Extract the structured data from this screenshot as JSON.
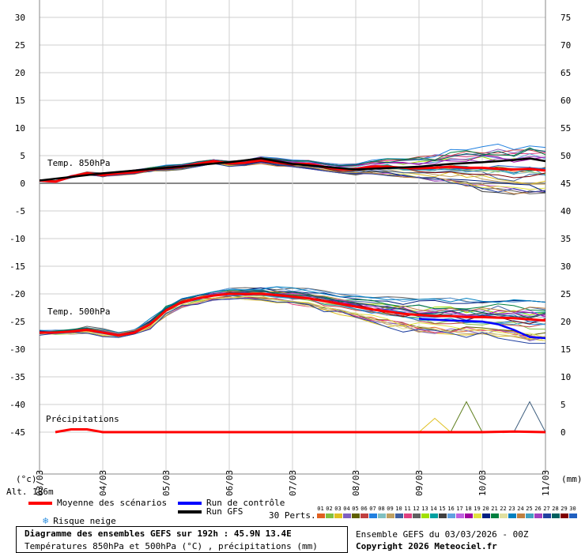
{
  "chart_data": {
    "type": "line",
    "x_categories": [
      "03/03",
      "04/03",
      "05/03",
      "06/03",
      "07/03",
      "08/03",
      "09/03",
      "10/03",
      "11/03"
    ],
    "y_left_ticks": [
      30,
      25,
      20,
      15,
      10,
      5,
      0,
      -5,
      -10,
      -15,
      -20,
      -25,
      -30,
      -35,
      -40,
      -45
    ],
    "y_right_ticks": [
      75,
      70,
      65,
      60,
      55,
      50,
      45,
      40,
      35,
      30,
      25,
      20,
      15,
      10,
      5,
      0
    ],
    "ylim_left": [
      -45,
      30
    ],
    "ylim_right": [
      0,
      75
    ],
    "left_unit": "(°c)",
    "right_unit": "(mm)",
    "annotations": {
      "t850": "Temp. 850hPa",
      "t500": "Temp. 500hPa",
      "precip": "Précipitations"
    },
    "series": [
      {
        "name": "Moyenne des scénarios",
        "group": "t850",
        "color": "#ff0000",
        "x": [
          0,
          0.25,
          0.5,
          0.75,
          1,
          1.25,
          1.5,
          1.75,
          2,
          2.25,
          2.5,
          2.75,
          3,
          3.25,
          3.5,
          3.75,
          4,
          4.25,
          4.5,
          4.75,
          5,
          5.25,
          5.5,
          5.75,
          6,
          6.25,
          6.5,
          6.75,
          7,
          7.25,
          7.5,
          7.75,
          8
        ],
        "values": [
          0.5,
          0.3,
          1.2,
          1.8,
          1.5,
          1.8,
          2.0,
          2.5,
          2.8,
          3.0,
          3.5,
          4.0,
          3.6,
          3.7,
          4.2,
          3.8,
          3.5,
          3.5,
          3.0,
          2.5,
          2.6,
          3.0,
          3.0,
          2.8,
          2.7,
          2.8,
          3.0,
          2.8,
          2.8,
          2.6,
          2.5,
          2.6,
          2.3
        ]
      },
      {
        "name": "Moyenne des scénarios",
        "group": "t500",
        "color": "#ff0000",
        "x": [
          0,
          0.25,
          0.5,
          0.75,
          1,
          1.25,
          1.5,
          1.75,
          2,
          2.25,
          2.5,
          2.75,
          3,
          3.25,
          3.5,
          3.75,
          4,
          4.25,
          4.5,
          4.75,
          5,
          5.25,
          5.5,
          5.75,
          6,
          6.25,
          6.5,
          6.75,
          7,
          7.25,
          7.5,
          7.75,
          8
        ],
        "values": [
          -27,
          -27,
          -26.8,
          -26.5,
          -27,
          -27.5,
          -27,
          -25.5,
          -23,
          -21.5,
          -20.8,
          -20.3,
          -20.0,
          -20.0,
          -20.0,
          -20.2,
          -20.5,
          -20.8,
          -21.3,
          -21.8,
          -22.3,
          -22.8,
          -23.2,
          -23.6,
          -23.8,
          -24.0,
          -24.0,
          -24.2,
          -24.2,
          -24.3,
          -24.4,
          -24.6,
          -24.8
        ]
      },
      {
        "name": "Run de contrôle",
        "group": "t500",
        "color": "#0000ff",
        "x": [
          6,
          6.5,
          7,
          7.25,
          7.5,
          7.75,
          8
        ],
        "values": [
          -24.5,
          -24.8,
          -25.0,
          -25.5,
          -26.5,
          -27.8,
          -28.0
        ]
      },
      {
        "name": "Run GFS",
        "group": "t850",
        "color": "#000000",
        "x": [
          0,
          1,
          2,
          3,
          3.5,
          4,
          5,
          6,
          6.5,
          7,
          7.5,
          7.75,
          8
        ],
        "values": [
          0.5,
          1.8,
          2.8,
          3.8,
          4.5,
          3.5,
          2.5,
          3.0,
          3.5,
          3.8,
          4.2,
          4.5,
          4.0
        ]
      },
      {
        "name": "Moyenne des scénarios",
        "group": "precip",
        "color": "#ff0000",
        "x": [
          0.25,
          0.5,
          0.75,
          1,
          2,
          3,
          4,
          5,
          6,
          7,
          7.5,
          8
        ],
        "values": [
          0,
          0.5,
          0.5,
          0,
          0,
          0,
          0,
          0,
          0,
          0,
          0.1,
          0
        ]
      }
    ],
    "members": {
      "count": 30,
      "t850_spread": {
        "x": [
          0,
          1,
          2,
          3,
          4,
          5,
          6,
          7,
          8
        ],
        "low": [
          0,
          0.5,
          1.5,
          2.5,
          3,
          1.5,
          1,
          -1.5,
          -3.5
        ],
        "high": [
          1,
          2.5,
          3.5,
          4.5,
          5.5,
          4.5,
          6.5,
          7.5,
          6.5
        ]
      },
      "t500_spread": {
        "x": [
          0,
          1,
          2,
          3,
          4,
          5,
          6,
          7,
          8
        ],
        "low": [
          -28.5,
          -28.5,
          -26,
          -22.5,
          -23.5,
          -25,
          -29.5,
          -28,
          -30.5
        ],
        "high": [
          -25.5,
          -25,
          -21.5,
          -19,
          -18.5,
          -19.5,
          -21,
          -20.5,
          -21.5
        ]
      },
      "precip_peaks": [
        {
          "x": 6.25,
          "value": 2.5
        },
        {
          "x": 6.75,
          "value": 5.5
        },
        {
          "x": 7.75,
          "value": 5.5
        }
      ]
    }
  },
  "footer": {
    "altitude": "Alt. 186m",
    "legend_mean": "Moyenne des scénarios",
    "legend_control": "Run de contrôle",
    "legend_gfs": "Run GFS",
    "legend_snow": "Risque neige",
    "perts_label": "30 Perts.",
    "pert_numbers": [
      "01",
      "02",
      "03",
      "04",
      "05",
      "06",
      "07",
      "08",
      "09",
      "10",
      "11",
      "12",
      "13",
      "14",
      "15",
      "16",
      "17",
      "18",
      "19",
      "20",
      "21",
      "22",
      "23",
      "24",
      "25",
      "26",
      "27",
      "28",
      "29",
      "30"
    ],
    "pert_colors": [
      "#e06020",
      "#80c040",
      "#e0c020",
      "#8060c0",
      "#606000",
      "#c04040",
      "#2080e0",
      "#80c0c0",
      "#c0a060",
      "#4060a0",
      "#e04080",
      "#606060",
      "#a0e000",
      "#00a0a0",
      "#404040",
      "#60a0e0",
      "#c060e0",
      "#a000a0",
      "#e0e040",
      "#002080",
      "#008040",
      "#e0e0a0",
      "#0080c0",
      "#c08040",
      "#40a0c0",
      "#a040c0",
      "#2040a0",
      "#006060",
      "#800000",
      "#2060c0"
    ],
    "title": "Diagramme des ensembles GEFS sur 192h : 45.9N 13.4E",
    "subtitle": "Températures 850hPa et 500hPa (°C) , précipitations (mm)",
    "run_info": "Ensemble GEFS du 03/03/2026 - 00Z",
    "copyright": "Copyright 2026 Meteociel.fr"
  }
}
